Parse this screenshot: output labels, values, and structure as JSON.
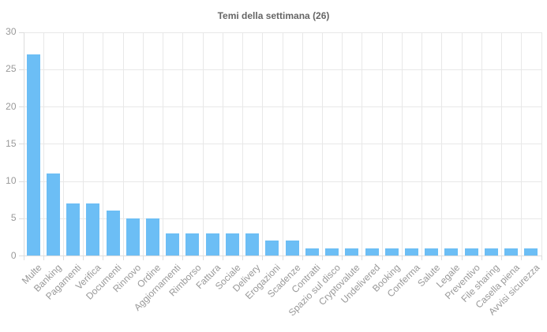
{
  "title": "Temi della settimana (26)",
  "chart_data": {
    "type": "bar",
    "title": "Temi della settimana (26)",
    "categories": [
      "Multe",
      "Banking",
      "Pagamenti",
      "Verifica",
      "Documenti",
      "Rinnovo",
      "Ordine",
      "Aggiornamenti",
      "Rimborso",
      "Fattura",
      "Sociale",
      "Delivery",
      "Erogazioni",
      "Scadenze",
      "Contratti",
      "Spazio sul disco",
      "Cryptovalute",
      "Undelivered",
      "Booking",
      "Conferma",
      "Salute",
      "Legale",
      "Preventivo",
      "File sharing",
      "Casella piena",
      "Avvisi sicurezza"
    ],
    "values": [
      27,
      11,
      7,
      7,
      6,
      5,
      5,
      3,
      3,
      3,
      3,
      3,
      2,
      2,
      1,
      1,
      1,
      1,
      1,
      1,
      1,
      1,
      1,
      1,
      1,
      1
    ],
    "xlabel": "",
    "ylabel": "",
    "ylim": [
      0,
      30
    ],
    "yticks": [
      0,
      5,
      10,
      15,
      20,
      25,
      30
    ],
    "grid": true,
    "legend": false,
    "colors": {
      "bar_fill": "#6CBEF5",
      "grid_line": "#E8E8E8",
      "axis_line": "#DDDDDD",
      "tick_text": "#999999",
      "title_text": "#666666",
      "background": "#FFFFFF"
    }
  }
}
